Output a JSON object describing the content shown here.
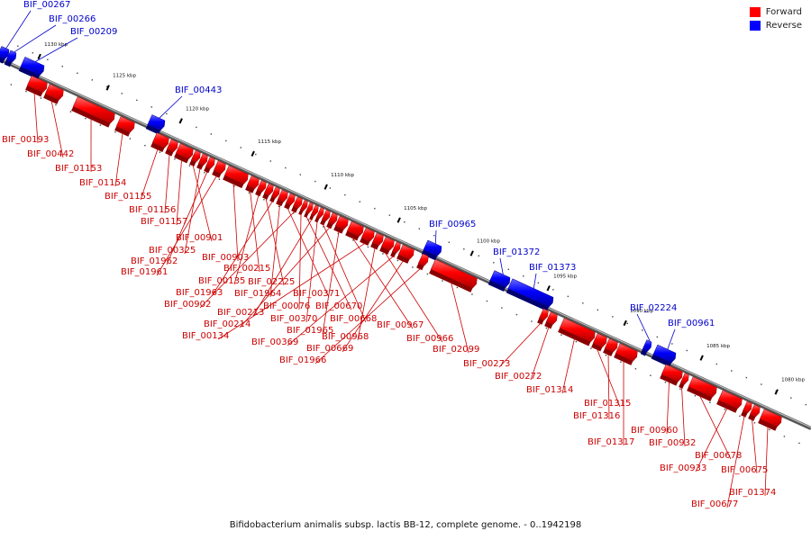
{
  "legend": {
    "forward": "Forward",
    "reverse": "Reverse"
  },
  "caption": "Bifidobacterium animalis subsp. lactis BB-12, complete genome. - 0..1942198",
  "colors": {
    "forward": "#ff0000",
    "reverse": "#0000ff",
    "forward_label": "#cc0000",
    "reverse_label": "#0000cc",
    "backbone": "#777777"
  },
  "ticks": [
    "1130 kbp",
    "1125 kbp",
    "1120 kbp",
    "1115 kbp",
    "1110 kbp",
    "1105 kbp",
    "1100 kbp",
    "1095 kbp",
    "1090 kbp",
    "1085 kbp",
    "1080 kbp"
  ],
  "features": [
    {
      "id": "BIF_00267",
      "strand": "reverse"
    },
    {
      "id": "BIF_00266",
      "strand": "reverse"
    },
    {
      "id": "BIF_00209",
      "strand": "reverse"
    },
    {
      "id": "BIF_00443",
      "strand": "reverse"
    },
    {
      "id": "BIF_00965",
      "strand": "reverse"
    },
    {
      "id": "BIF_01372",
      "strand": "reverse"
    },
    {
      "id": "BIF_01373",
      "strand": "reverse"
    },
    {
      "id": "BIF_02224",
      "strand": "reverse"
    },
    {
      "id": "BIF_00961",
      "strand": "reverse"
    },
    {
      "id": "BIF_00193",
      "strand": "forward"
    },
    {
      "id": "BIF_00442",
      "strand": "forward"
    },
    {
      "id": "BIF_01153",
      "strand": "forward"
    },
    {
      "id": "BIF_01154",
      "strand": "forward"
    },
    {
      "id": "BIF_01155",
      "strand": "forward"
    },
    {
      "id": "BIF_01156",
      "strand": "forward"
    },
    {
      "id": "BIF_01157",
      "strand": "forward"
    },
    {
      "id": "BIF_00901",
      "strand": "forward"
    },
    {
      "id": "BIF_00325",
      "strand": "forward"
    },
    {
      "id": "BIF_01962",
      "strand": "forward"
    },
    {
      "id": "BIF_01961",
      "strand": "forward"
    },
    {
      "id": "BIF_00903",
      "strand": "forward"
    },
    {
      "id": "BIF_00215",
      "strand": "forward"
    },
    {
      "id": "BIF_00135",
      "strand": "forward"
    },
    {
      "id": "BIF_02225",
      "strand": "forward"
    },
    {
      "id": "BIF_01963",
      "strand": "forward"
    },
    {
      "id": "BIF_01964",
      "strand": "forward"
    },
    {
      "id": "BIF_00371",
      "strand": "forward"
    },
    {
      "id": "BIF_00902",
      "strand": "forward"
    },
    {
      "id": "BIF_00076",
      "strand": "forward"
    },
    {
      "id": "BIF_00670",
      "strand": "forward"
    },
    {
      "id": "BIF_00213",
      "strand": "forward"
    },
    {
      "id": "BIF_00370",
      "strand": "forward"
    },
    {
      "id": "BIF_00668",
      "strand": "forward"
    },
    {
      "id": "BIF_00214",
      "strand": "forward"
    },
    {
      "id": "BIF_01965",
      "strand": "forward"
    },
    {
      "id": "BIF_00967",
      "strand": "forward"
    },
    {
      "id": "BIF_00134",
      "strand": "forward"
    },
    {
      "id": "BIF_00968",
      "strand": "forward"
    },
    {
      "id": "BIF_00966",
      "strand": "forward"
    },
    {
      "id": "BIF_00369",
      "strand": "forward"
    },
    {
      "id": "BIF_00669",
      "strand": "forward"
    },
    {
      "id": "BIF_02099",
      "strand": "forward"
    },
    {
      "id": "BIF_01966",
      "strand": "forward"
    },
    {
      "id": "BIF_00273",
      "strand": "forward"
    },
    {
      "id": "BIF_00272",
      "strand": "forward"
    },
    {
      "id": "BIF_01314",
      "strand": "forward"
    },
    {
      "id": "BIF_01315",
      "strand": "forward"
    },
    {
      "id": "BIF_01316",
      "strand": "forward"
    },
    {
      "id": "BIF_00960",
      "strand": "forward"
    },
    {
      "id": "BIF_01317",
      "strand": "forward"
    },
    {
      "id": "BIF_00932",
      "strand": "forward"
    },
    {
      "id": "BIF_00678",
      "strand": "forward"
    },
    {
      "id": "BIF_00933",
      "strand": "forward"
    },
    {
      "id": "BIF_00675",
      "strand": "forward"
    },
    {
      "id": "BIF_01374",
      "strand": "forward"
    },
    {
      "id": "BIF_00677",
      "strand": "forward"
    }
  ]
}
